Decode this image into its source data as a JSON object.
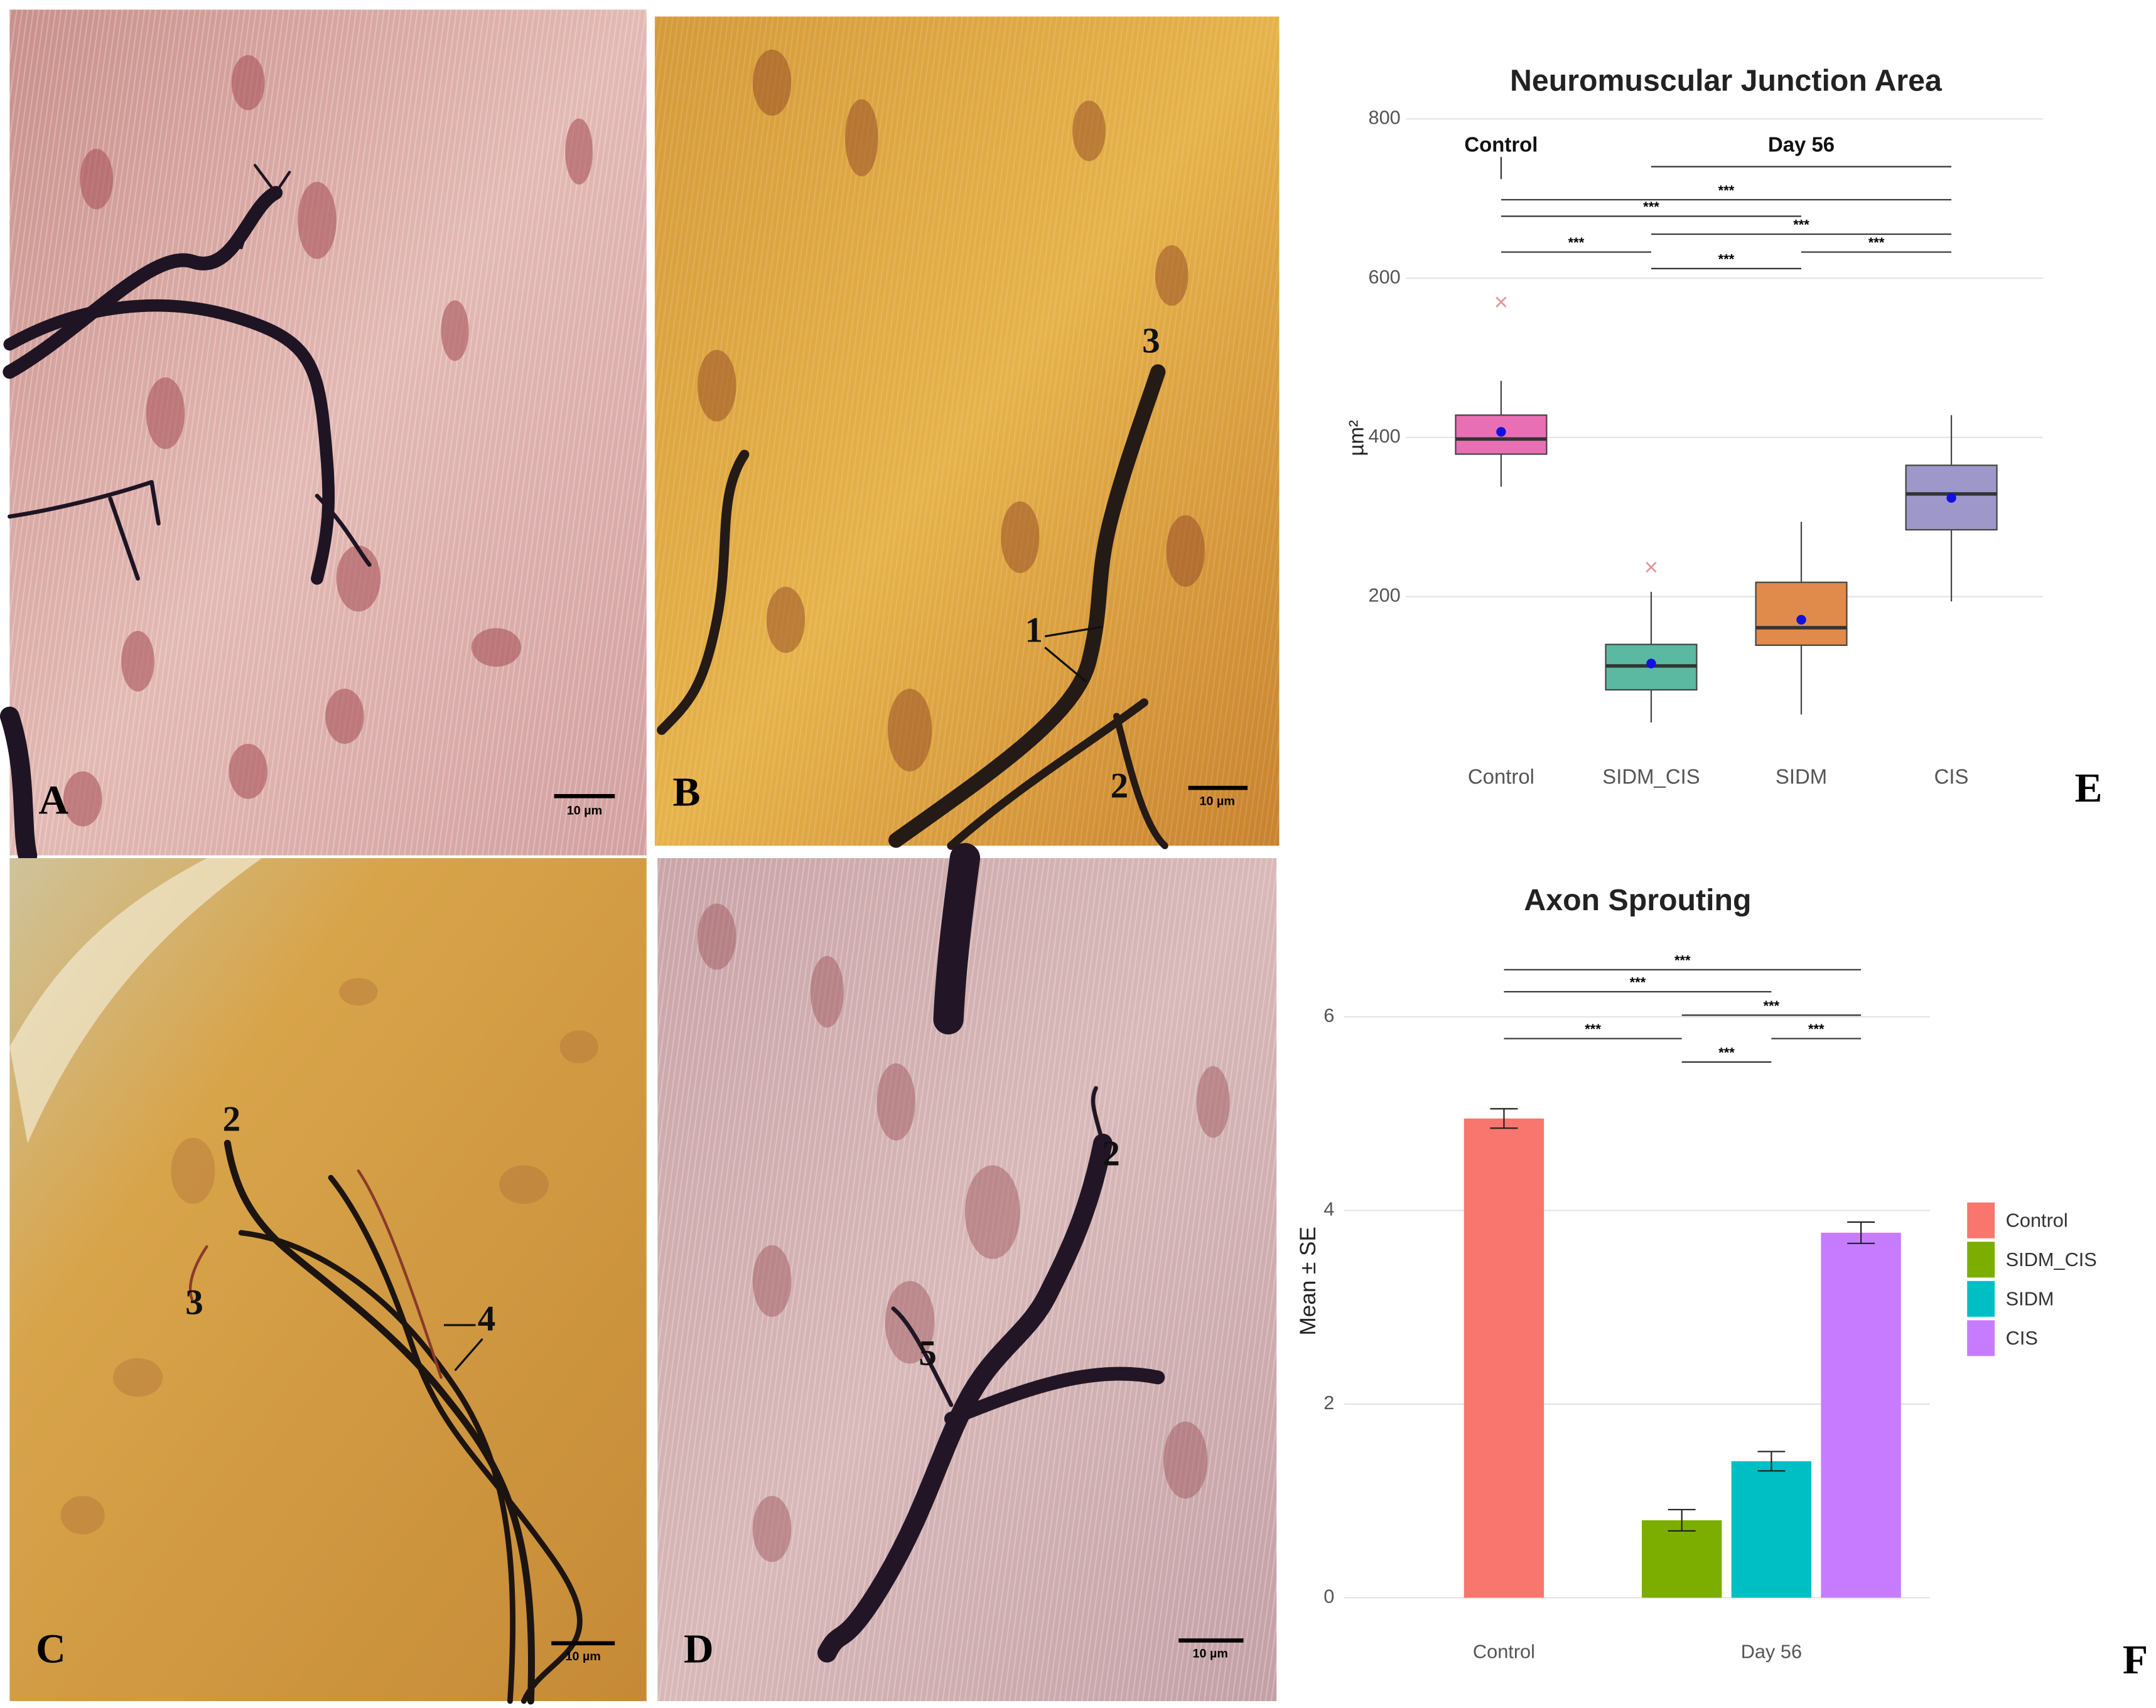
{
  "panels": [
    {
      "label": "A",
      "scale_bar": "10 µm"
    },
    {
      "label": "B",
      "scale_bar": "10 µm",
      "markers": [
        "3",
        "1",
        "2"
      ]
    },
    {
      "label": "C",
      "scale_bar": "10 µm",
      "markers": [
        "2",
        "3",
        "4"
      ]
    },
    {
      "label": "D",
      "scale_bar": "10 µm",
      "markers": [
        "2",
        "5"
      ]
    }
  ],
  "chart_data": [
    {
      "type": "box",
      "panel_label": "E",
      "title": "Neuromuscular Junction Area",
      "y_label": "µm²",
      "categories": [
        "Control",
        "SIDM_CIS",
        "SIDM",
        "CIS"
      ],
      "colors": [
        "#e96fb4",
        "#5ab9a0",
        "#e08a4c",
        "#9d98c9"
      ],
      "whisker_low": [
        338,
        42,
        52,
        194
      ],
      "q1": [
        379,
        83,
        139,
        284
      ],
      "median": [
        398,
        113,
        161,
        329
      ],
      "q3": [
        428,
        140,
        218,
        365
      ],
      "whisker_high": [
        471,
        206,
        294,
        428
      ],
      "mean": [
        407,
        116,
        171,
        324
      ],
      "outliers": [
        [
          570
        ],
        [
          237
        ],
        [],
        []
      ],
      "ylim": [
        10,
        830
      ],
      "yticks": [
        200,
        400,
        600,
        800
      ],
      "grid": true,
      "group_headers": [
        {
          "label": "Control",
          "categories": [
            "Control"
          ]
        },
        {
          "label": "Day 56",
          "categories": [
            "SIDM_CIS",
            "SIDM",
            "CIS"
          ]
        }
      ],
      "comparisons": [
        {
          "groups": [
            "Control",
            "CIS"
          ],
          "label": "***"
        },
        {
          "groups": [
            "Control",
            "SIDM"
          ],
          "label": "***"
        },
        {
          "groups": [
            "SIDM_CIS",
            "CIS"
          ],
          "label": "***"
        },
        {
          "groups": [
            "Control",
            "SIDM_CIS"
          ],
          "label": "***"
        },
        {
          "groups": [
            "SIDM",
            "CIS"
          ],
          "label": "***"
        },
        {
          "groups": [
            "SIDM_CIS",
            "SIDM"
          ],
          "label": "***"
        }
      ]
    },
    {
      "type": "bar",
      "panel_label": "F",
      "title": "Axon Sprouting",
      "y_label": "Mean ± SE",
      "categories": [
        "Control",
        "Day 56"
      ],
      "series": [
        {
          "name": "Control",
          "color": "#f8766d",
          "values": [
            4.95,
            null
          ],
          "errors": [
            0.1,
            null
          ]
        },
        {
          "name": "SIDM_CIS",
          "color": "#7cae00",
          "values": [
            null,
            0.8
          ],
          "errors": [
            null,
            0.11
          ]
        },
        {
          "name": "SIDM",
          "color": "#00bfc4",
          "values": [
            null,
            1.41
          ],
          "errors": [
            null,
            0.1
          ]
        },
        {
          "name": "CIS",
          "color": "#c77cff",
          "values": [
            null,
            3.77
          ],
          "errors": [
            null,
            0.11
          ]
        }
      ],
      "ylim": [
        -0.2,
        6.7
      ],
      "yticks": [
        0,
        2,
        4,
        6
      ],
      "grid": true,
      "legend": "right",
      "comparisons": [
        {
          "groups": [
            "Control",
            "CIS"
          ],
          "label": "***"
        },
        {
          "groups": [
            "Control",
            "SIDM"
          ],
          "label": "***"
        },
        {
          "groups": [
            "SIDM_CIS",
            "CIS"
          ],
          "label": "***"
        },
        {
          "groups": [
            "Control",
            "SIDM_CIS"
          ],
          "label": "***"
        },
        {
          "groups": [
            "SIDM",
            "CIS"
          ],
          "label": "***"
        },
        {
          "groups": [
            "SIDM_CIS",
            "SIDM"
          ],
          "label": "***"
        }
      ]
    }
  ]
}
